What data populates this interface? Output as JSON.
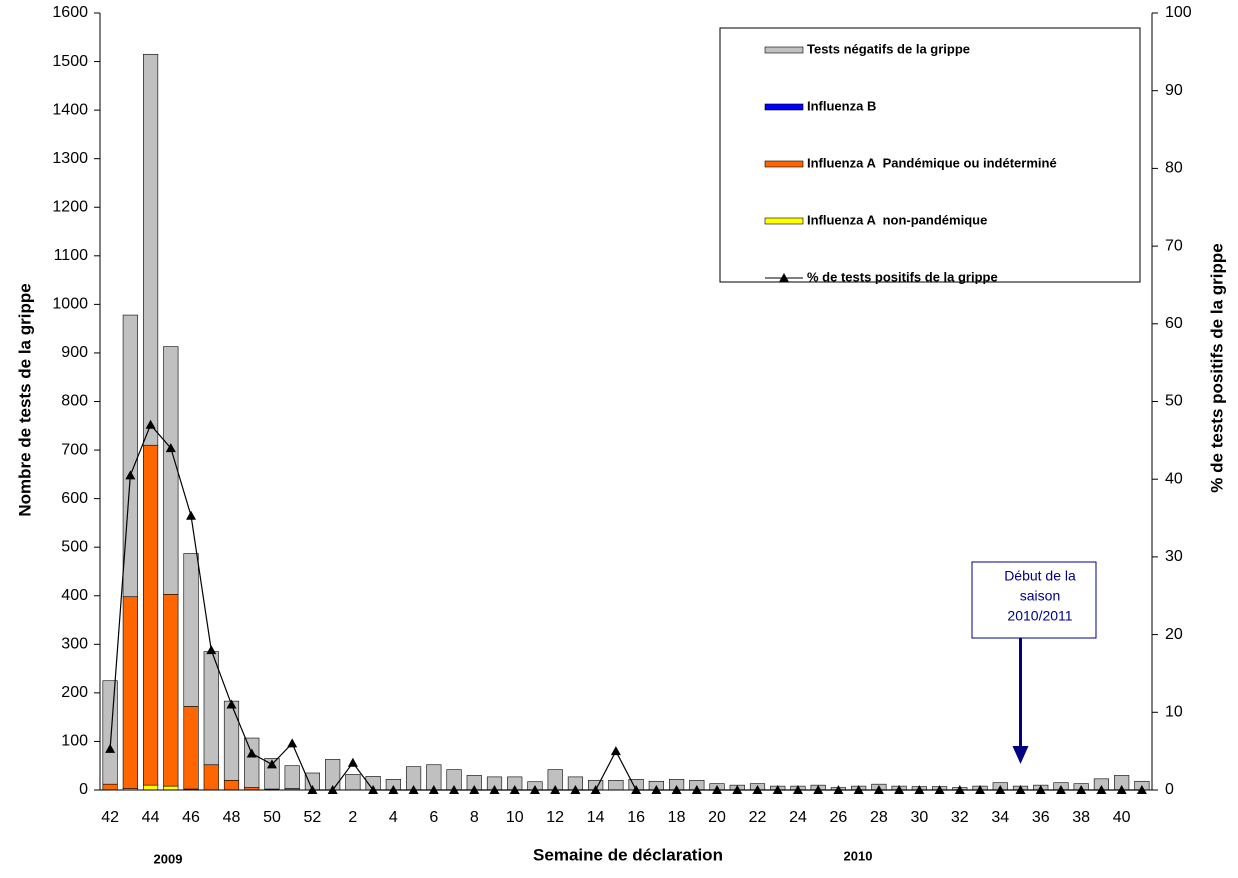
{
  "chart_data": {
    "type": "bar",
    "categories": [
      "42",
      null,
      "44",
      null,
      "46",
      null,
      "48",
      null,
      "50",
      null,
      "52",
      null,
      "2",
      null,
      "4",
      null,
      "6",
      null,
      "8",
      null,
      "10",
      null,
      "12",
      null,
      "14",
      null,
      "16",
      null,
      "18",
      null,
      "20",
      null,
      "22",
      null,
      "24",
      null,
      "26",
      null,
      "28",
      null,
      "30",
      null,
      "32",
      null,
      "34",
      null,
      "36",
      null,
      "38",
      null,
      "40",
      null
    ],
    "series": [
      {
        "name": "Influenza A  non-pandémique",
        "color": "#ffff00",
        "values": [
          0,
          3,
          10,
          8,
          2,
          0,
          0,
          0,
          0,
          0,
          0,
          0,
          0,
          0,
          0,
          0,
          0,
          0,
          0,
          0,
          0,
          0,
          0,
          0,
          0,
          0,
          0,
          0,
          0,
          0,
          0,
          0,
          0,
          0,
          0,
          0,
          0,
          0,
          0,
          0,
          0,
          0,
          0,
          0,
          0,
          0,
          0,
          0,
          0,
          0,
          0,
          0
        ]
      },
      {
        "name": "Influenza A  Pandémique ou indéterminé",
        "color": "#ff6600",
        "values": [
          12,
          395,
          700,
          395,
          170,
          52,
          20,
          5,
          2,
          3,
          0,
          0,
          0,
          0,
          0,
          0,
          0,
          0,
          0,
          0,
          0,
          0,
          0,
          0,
          0,
          0,
          0,
          0,
          0,
          0,
          0,
          0,
          0,
          0,
          0,
          0,
          0,
          0,
          0,
          0,
          0,
          0,
          0,
          0,
          0,
          0,
          0,
          0,
          0,
          0,
          0,
          0
        ]
      },
      {
        "name": "Influenza B",
        "color": "#0000ff",
        "values": [
          0,
          0,
          0,
          0,
          0,
          0,
          0,
          0,
          0,
          0,
          0,
          0,
          0,
          0,
          0,
          0,
          0,
          0,
          0,
          0,
          0,
          0,
          0,
          0,
          0,
          0,
          0,
          0,
          0,
          0,
          0,
          0,
          0,
          0,
          0,
          0,
          0,
          0,
          0,
          0,
          0,
          0,
          0,
          0,
          0,
          0,
          0,
          0,
          0,
          0,
          0,
          0
        ]
      },
      {
        "name": "Tests négatifs de la grippe",
        "color": "#c0c0c0",
        "values": [
          213,
          580,
          805,
          510,
          315,
          233,
          163,
          102,
          63,
          47,
          35,
          63,
          32,
          28,
          22,
          48,
          52,
          42,
          30,
          27,
          27,
          17,
          42,
          27,
          20,
          20,
          22,
          18,
          22,
          20,
          13,
          10,
          13,
          8,
          8,
          10,
          5,
          8,
          12,
          8,
          7,
          7,
          5,
          8,
          15,
          8,
          10,
          15,
          13,
          23,
          30,
          18
        ]
      },
      {
        "name": "% de tests positifs de la grippe",
        "type": "line",
        "axis": "y2",
        "color": "#000000",
        "values": [
          5.3,
          40.5,
          47,
          44,
          35.3,
          18,
          11,
          4.7,
          3.3,
          6,
          0,
          0,
          3.5,
          0,
          0,
          0,
          0,
          0,
          0,
          0,
          0,
          0,
          0,
          0,
          0,
          5,
          0,
          0,
          0,
          0,
          0,
          0,
          0,
          0,
          0,
          0,
          0,
          0,
          0,
          0,
          0,
          0,
          0,
          0,
          0,
          0,
          0,
          0,
          0,
          0,
          0,
          0
        ]
      }
    ],
    "legend_order": [
      3,
      2,
      1,
      0,
      4
    ],
    "ylim": [
      0,
      1600
    ],
    "yticks": [
      0,
      100,
      200,
      300,
      400,
      500,
      600,
      700,
      800,
      900,
      1000,
      1100,
      1200,
      1300,
      1400,
      1500,
      1600
    ],
    "y2lim": [
      0,
      100
    ],
    "y2ticks": [
      0,
      10,
      20,
      30,
      40,
      50,
      60,
      70,
      80,
      90,
      100
    ],
    "y_label": "Nombre de tests de la grippe",
    "y2_label": "% de tests positifs de la grippe",
    "x_label": "Semaine de déclaration",
    "year_labels": [
      "2009",
      "2010"
    ],
    "annotation": {
      "lines": [
        "Début de la",
        "saison",
        "2010/2011"
      ],
      "category_index": 45
    }
  }
}
